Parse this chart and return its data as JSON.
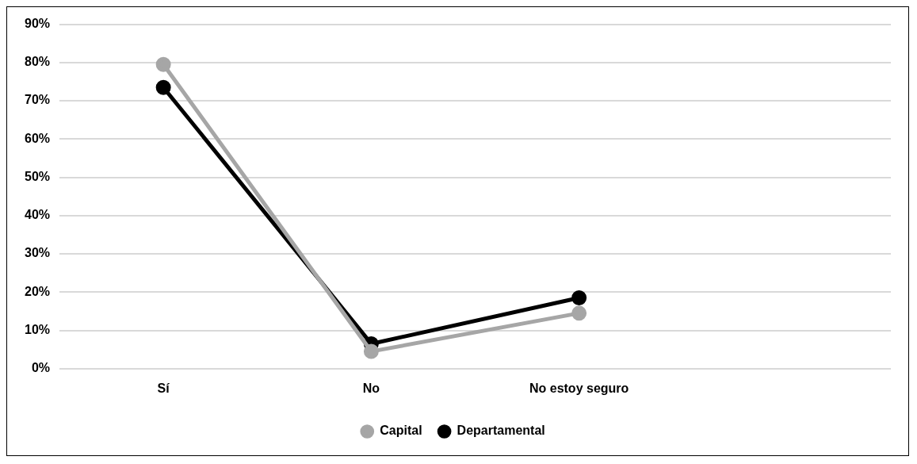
{
  "chart_data": {
    "type": "line",
    "categories": [
      "Sí",
      "No",
      "No estoy seguro",
      null
    ],
    "series": [
      {
        "name": "Capital",
        "color": "#a6a6a6",
        "values": [
          79.5,
          4.5,
          14.5,
          null
        ]
      },
      {
        "name": "Departamental",
        "color": "#000000",
        "values": [
          73.5,
          6.5,
          18.5,
          null
        ]
      }
    ],
    "ylim": [
      0,
      90
    ],
    "yticks": [
      {
        "value": 0,
        "label": "0%"
      },
      {
        "value": 10,
        "label": "10%"
      },
      {
        "value": 20,
        "label": "20%"
      },
      {
        "value": 30,
        "label": "30%"
      },
      {
        "value": 40,
        "label": "40%"
      },
      {
        "value": 50,
        "label": "50%"
      },
      {
        "value": 60,
        "label": "60%"
      },
      {
        "value": 70,
        "label": "70%"
      },
      {
        "value": 80,
        "label": "80%"
      },
      {
        "value": 90,
        "label": "90%"
      }
    ],
    "grid": "y",
    "legend": "bottom",
    "marker": "circle",
    "line_style": "solid"
  }
}
